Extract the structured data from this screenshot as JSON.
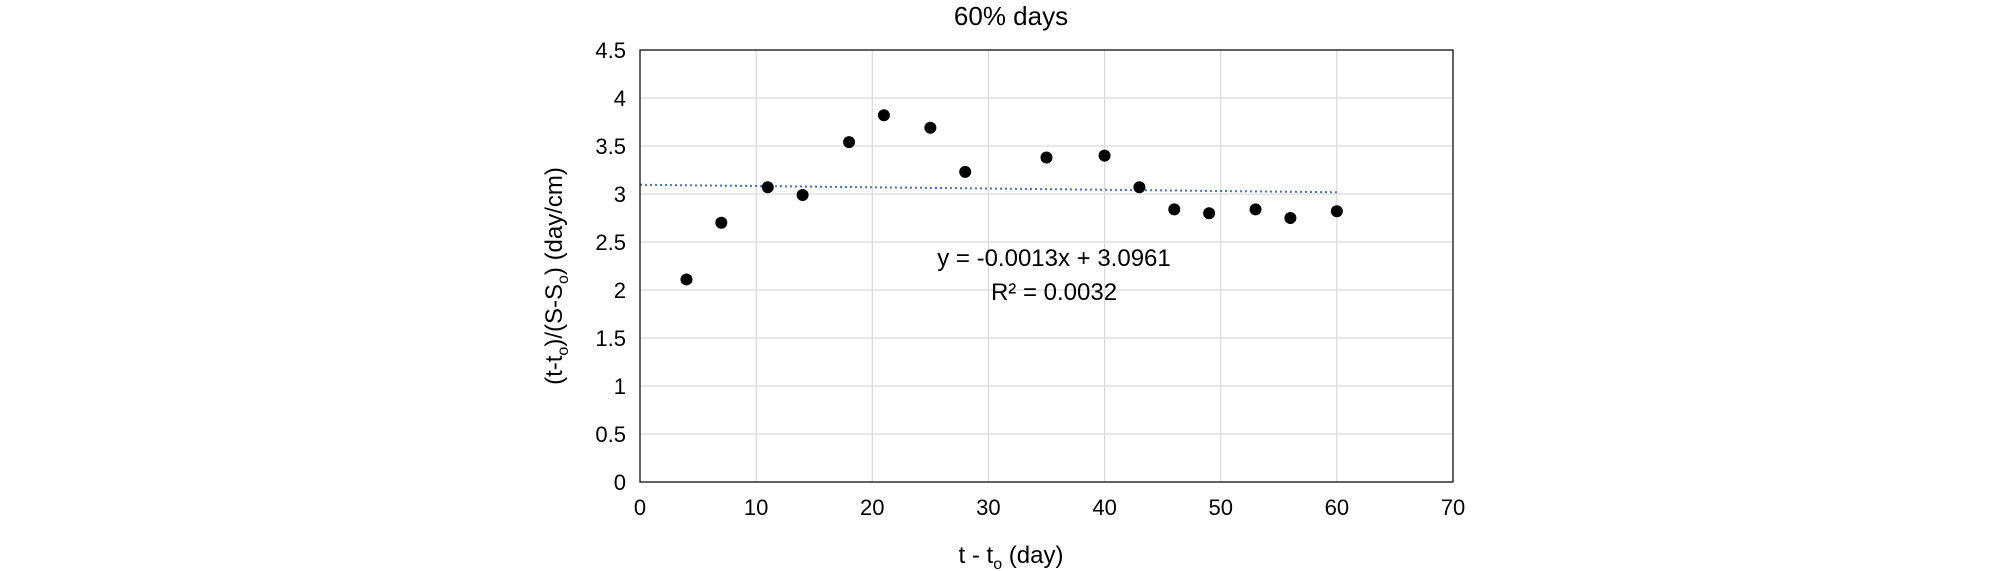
{
  "chart_data": {
    "type": "scatter",
    "title": "60% days",
    "xlabel": {
      "main": "t - t",
      "sub": "o",
      "rest": " (day)"
    },
    "ylabel": {
      "p1": "(t-t",
      "s1": "o",
      "p2": ")/(S-S",
      "s2": "o",
      "p3": ") (day/cm)"
    },
    "xlim": [
      0,
      70
    ],
    "ylim": [
      0,
      4.5
    ],
    "xticks": [
      0,
      10,
      20,
      30,
      40,
      50,
      60,
      70
    ],
    "yticks": [
      0,
      0.5,
      1,
      1.5,
      2,
      2.5,
      3,
      3.5,
      4,
      4.5
    ],
    "grid": true,
    "points": [
      {
        "x": 4,
        "y": 2.11
      },
      {
        "x": 7,
        "y": 2.7
      },
      {
        "x": 11,
        "y": 3.07
      },
      {
        "x": 14,
        "y": 2.99
      },
      {
        "x": 18,
        "y": 3.54
      },
      {
        "x": 21,
        "y": 3.82
      },
      {
        "x": 25,
        "y": 3.69
      },
      {
        "x": 28,
        "y": 3.23
      },
      {
        "x": 35,
        "y": 3.38
      },
      {
        "x": 40,
        "y": 3.4
      },
      {
        "x": 43,
        "y": 3.07
      },
      {
        "x": 46,
        "y": 2.84
      },
      {
        "x": 49,
        "y": 2.8
      },
      {
        "x": 53,
        "y": 2.84
      },
      {
        "x": 56,
        "y": 2.75
      },
      {
        "x": 60,
        "y": 2.82
      }
    ],
    "trendline": {
      "type": "linear",
      "slope": -0.0013,
      "intercept": 3.0961,
      "x_range": [
        0,
        60
      ],
      "equation": "y = -0.0013x + 3.0961",
      "r_squared": "R² = 0.0032"
    },
    "colors": {
      "point": "#000000",
      "trendline": "#4472c4",
      "grid": "#d9d9d9",
      "axis": "#000000"
    }
  }
}
